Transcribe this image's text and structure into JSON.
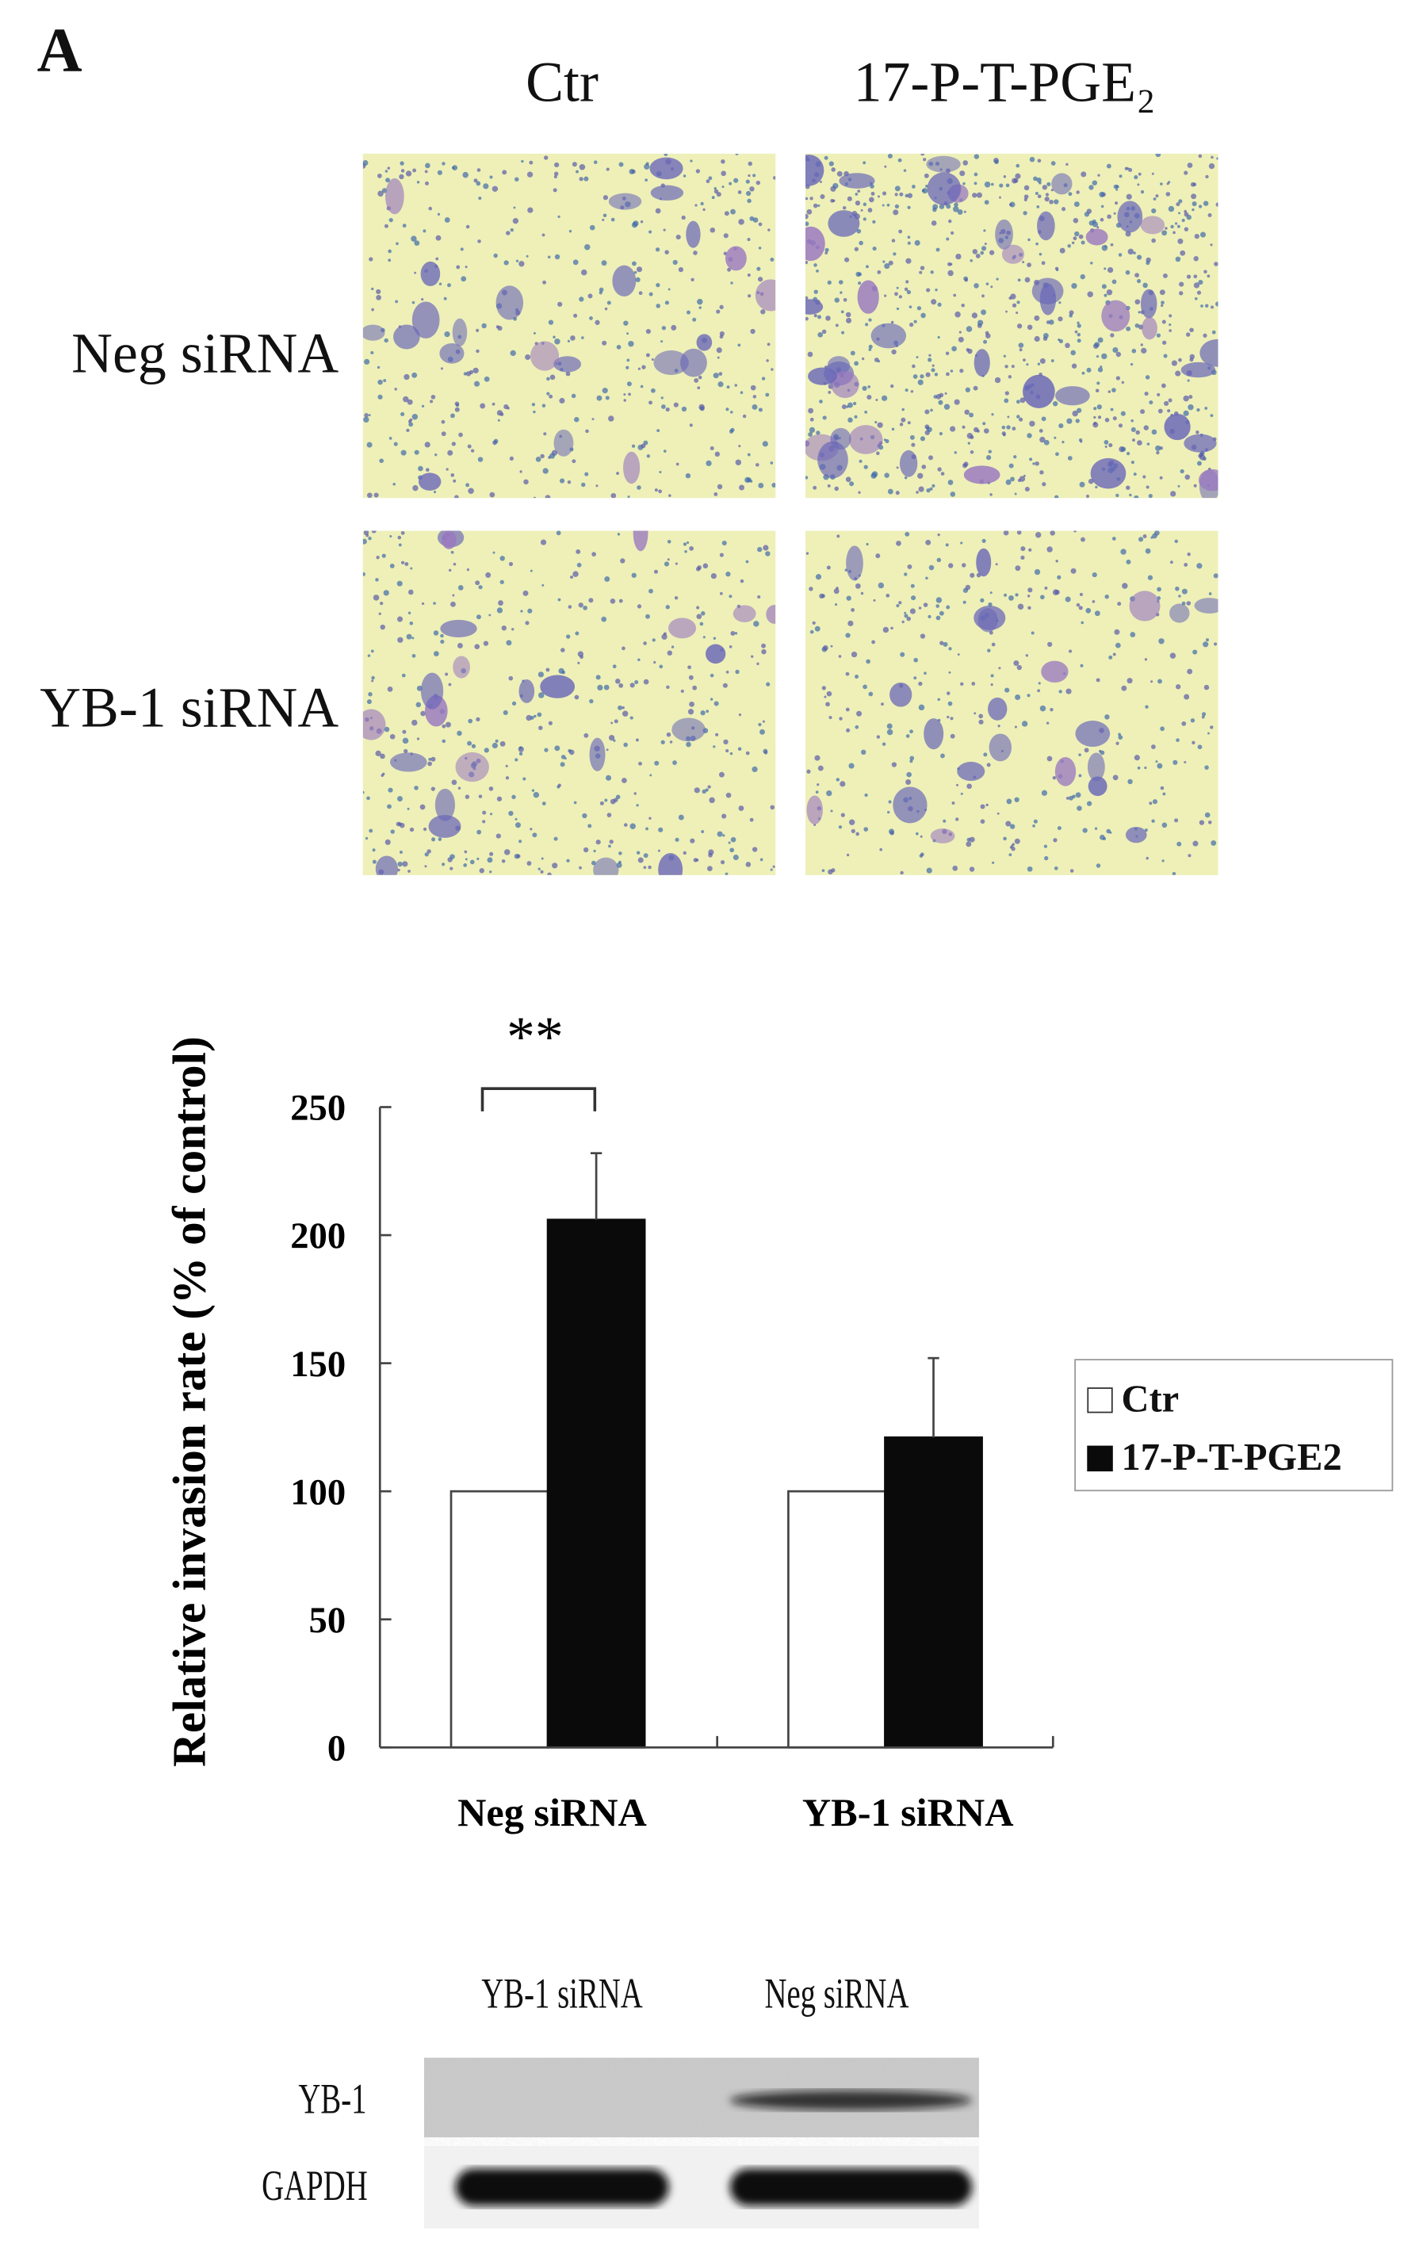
{
  "figure": {
    "panel_label": "A",
    "micrographs": {
      "column_headers": [
        "Ctr",
        "17-P-T-PGE₂"
      ],
      "row_headers": [
        "Neg siRNA",
        "YB-1 siRNA"
      ]
    },
    "western_blot": {
      "lane_headers": [
        "YB-1 siRNA",
        "Neg siRNA"
      ],
      "row_labels": [
        "YB-1",
        "GAPDH"
      ],
      "band_intensity": {
        "YB-1": [
          0.0,
          0.8
        ],
        "GAPDH": [
          1.0,
          1.0
        ]
      }
    },
    "colors": {
      "photo_background": "#eef0b8",
      "stain": "#5a5aa8",
      "bar_ctr": "#ffffff",
      "bar_treated": "#0a0a0a"
    }
  },
  "chart_data": {
    "type": "bar",
    "title": "",
    "xlabel": "",
    "ylabel": "Relative invasion rate (% of control)",
    "ylim": [
      0,
      250
    ],
    "yticks": [
      "0",
      "50",
      "100",
      "150",
      "200",
      "250"
    ],
    "categories": [
      "Neg siRNA",
      "YB-1 siRNA"
    ],
    "series": [
      {
        "name": "Ctr",
        "values": [
          100,
          100
        ],
        "errors": [
          0,
          0
        ],
        "color": "#ffffff"
      },
      {
        "name": "17-P-T-PGE2",
        "values": [
          206,
          121
        ],
        "errors": [
          26,
          31
        ],
        "color": "#0a0a0a"
      }
    ],
    "annotations": [
      {
        "text": "**",
        "between": [
          "Neg siRNA Ctr",
          "Neg siRNA 17-P-T-PGE2"
        ]
      }
    ],
    "legend": {
      "position": "right",
      "entries": [
        "Ctr",
        "17-P-T-PGE2"
      ]
    },
    "grid": false
  }
}
